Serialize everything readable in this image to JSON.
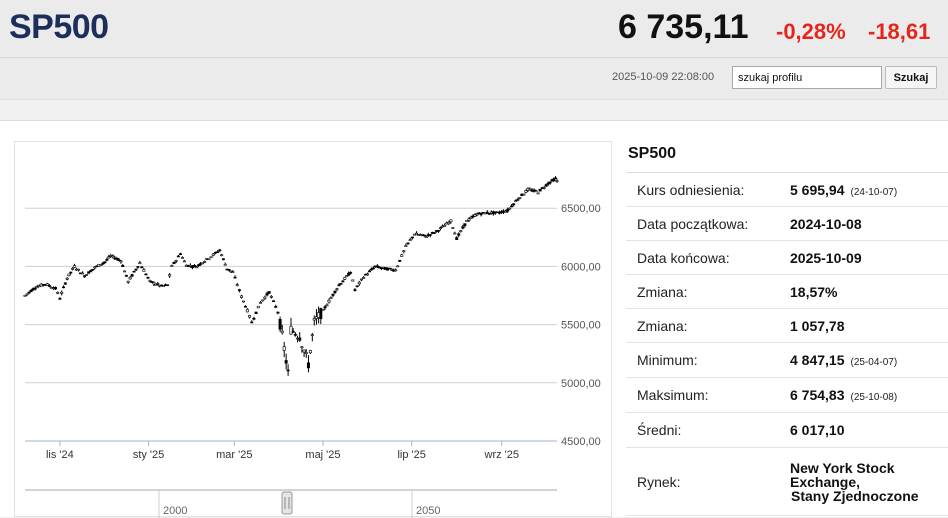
{
  "header": {
    "symbol": "SP500",
    "price": "6 735,11",
    "change_pct": "-0,28%",
    "change_abs": "-18,61",
    "timestamp": "2025-10-09 22:08:00",
    "search_value": "szukaj profilu",
    "search_button": "Szukaj"
  },
  "info": {
    "title": "SP500",
    "rows": [
      {
        "label": "Kurs odniesienia:",
        "value": "5 695,94",
        "note": "(24-10-07)"
      },
      {
        "label": "Data początkowa:",
        "value": "2024-10-08",
        "note": ""
      },
      {
        "label": "Data końcowa:",
        "value": "2025-10-09",
        "note": ""
      },
      {
        "label": "Zmiana:",
        "value": "18,57%",
        "note": ""
      },
      {
        "label": "Zmiana:",
        "value": "1 057,78",
        "note": ""
      },
      {
        "label": "Minimum:",
        "value": "4 847,15",
        "note": "(25-04-07)"
      },
      {
        "label": "Maksimum:",
        "value": "6 754,83",
        "note": "(25-10-08)"
      },
      {
        "label": "Średni:",
        "value": "6 017,10",
        "note": ""
      },
      {
        "label": "Rynek:",
        "value": "New York Stock Exchange, Stany Zjednoczone",
        "note": ""
      }
    ]
  },
  "chart_data": {
    "type": "line",
    "ylim": [
      4500,
      7000
    ],
    "yticks": [
      "6500,00",
      "6000,00",
      "5500,00",
      "5000,00",
      "4500,00"
    ],
    "ytick_values": [
      6500,
      6000,
      5500,
      5000,
      4500
    ],
    "xticks": [
      "lis '24",
      "sty '25",
      "mar '25",
      "maj '25",
      "lip '25",
      "wrz '25"
    ],
    "navigator_labels": [
      "2000",
      "2050"
    ],
    "series": [
      {
        "values": [
          [
            "2024-10-08",
            5750
          ],
          [
            "2024-10-15",
            5820
          ],
          [
            "2024-10-22",
            5850
          ],
          [
            "2024-10-29",
            5810
          ],
          [
            "2024-11-01",
            5730
          ],
          [
            "2024-11-06",
            5900
          ],
          [
            "2024-11-11",
            6000
          ],
          [
            "2024-11-18",
            5920
          ],
          [
            "2024-11-25",
            5990
          ],
          [
            "2024-12-02",
            6040
          ],
          [
            "2024-12-06",
            6090
          ],
          [
            "2024-12-13",
            6050
          ],
          [
            "2024-12-18",
            5870
          ],
          [
            "2024-12-26",
            6030
          ],
          [
            "2025-01-02",
            5870
          ],
          [
            "2025-01-10",
            5830
          ],
          [
            "2025-01-14",
            5840
          ],
          [
            "2025-01-17",
            6000
          ],
          [
            "2025-01-23",
            6110
          ],
          [
            "2025-01-27",
            6010
          ],
          [
            "2025-02-03",
            6000
          ],
          [
            "2025-02-10",
            6060
          ],
          [
            "2025-02-19",
            6140
          ],
          [
            "2025-02-24",
            5980
          ],
          [
            "2025-02-28",
            5950
          ],
          [
            "2025-03-06",
            5740
          ],
          [
            "2025-03-10",
            5620
          ],
          [
            "2025-03-13",
            5520
          ],
          [
            "2025-03-19",
            5690
          ],
          [
            "2025-03-25",
            5780
          ],
          [
            "2025-03-31",
            5610
          ],
          [
            "2025-04-03",
            5400
          ],
          [
            "2025-04-07",
            5080
          ],
          [
            "2025-04-09",
            5460
          ],
          [
            "2025-04-15",
            5400
          ],
          [
            "2025-04-21",
            5160
          ],
          [
            "2025-04-25",
            5520
          ],
          [
            "2025-05-01",
            5620
          ],
          [
            "2025-05-12",
            5840
          ],
          [
            "2025-05-20",
            5950
          ],
          [
            "2025-05-23",
            5800
          ],
          [
            "2025-05-29",
            5910
          ],
          [
            "2025-06-06",
            6000
          ],
          [
            "2025-06-13",
            5980
          ],
          [
            "2025-06-20",
            5970
          ],
          [
            "2025-06-27",
            6170
          ],
          [
            "2025-07-03",
            6280
          ],
          [
            "2025-07-11",
            6260
          ],
          [
            "2025-07-18",
            6300
          ],
          [
            "2025-07-28",
            6390
          ],
          [
            "2025-08-01",
            6240
          ],
          [
            "2025-08-08",
            6390
          ],
          [
            "2025-08-15",
            6450
          ],
          [
            "2025-08-22",
            6460
          ],
          [
            "2025-08-29",
            6460
          ],
          [
            "2025-09-05",
            6480
          ],
          [
            "2025-09-12",
            6580
          ],
          [
            "2025-09-19",
            6660
          ],
          [
            "2025-09-26",
            6640
          ],
          [
            "2025-10-03",
            6715
          ],
          [
            "2025-10-08",
            6754
          ],
          [
            "2025-10-09",
            6735
          ]
        ]
      }
    ]
  }
}
